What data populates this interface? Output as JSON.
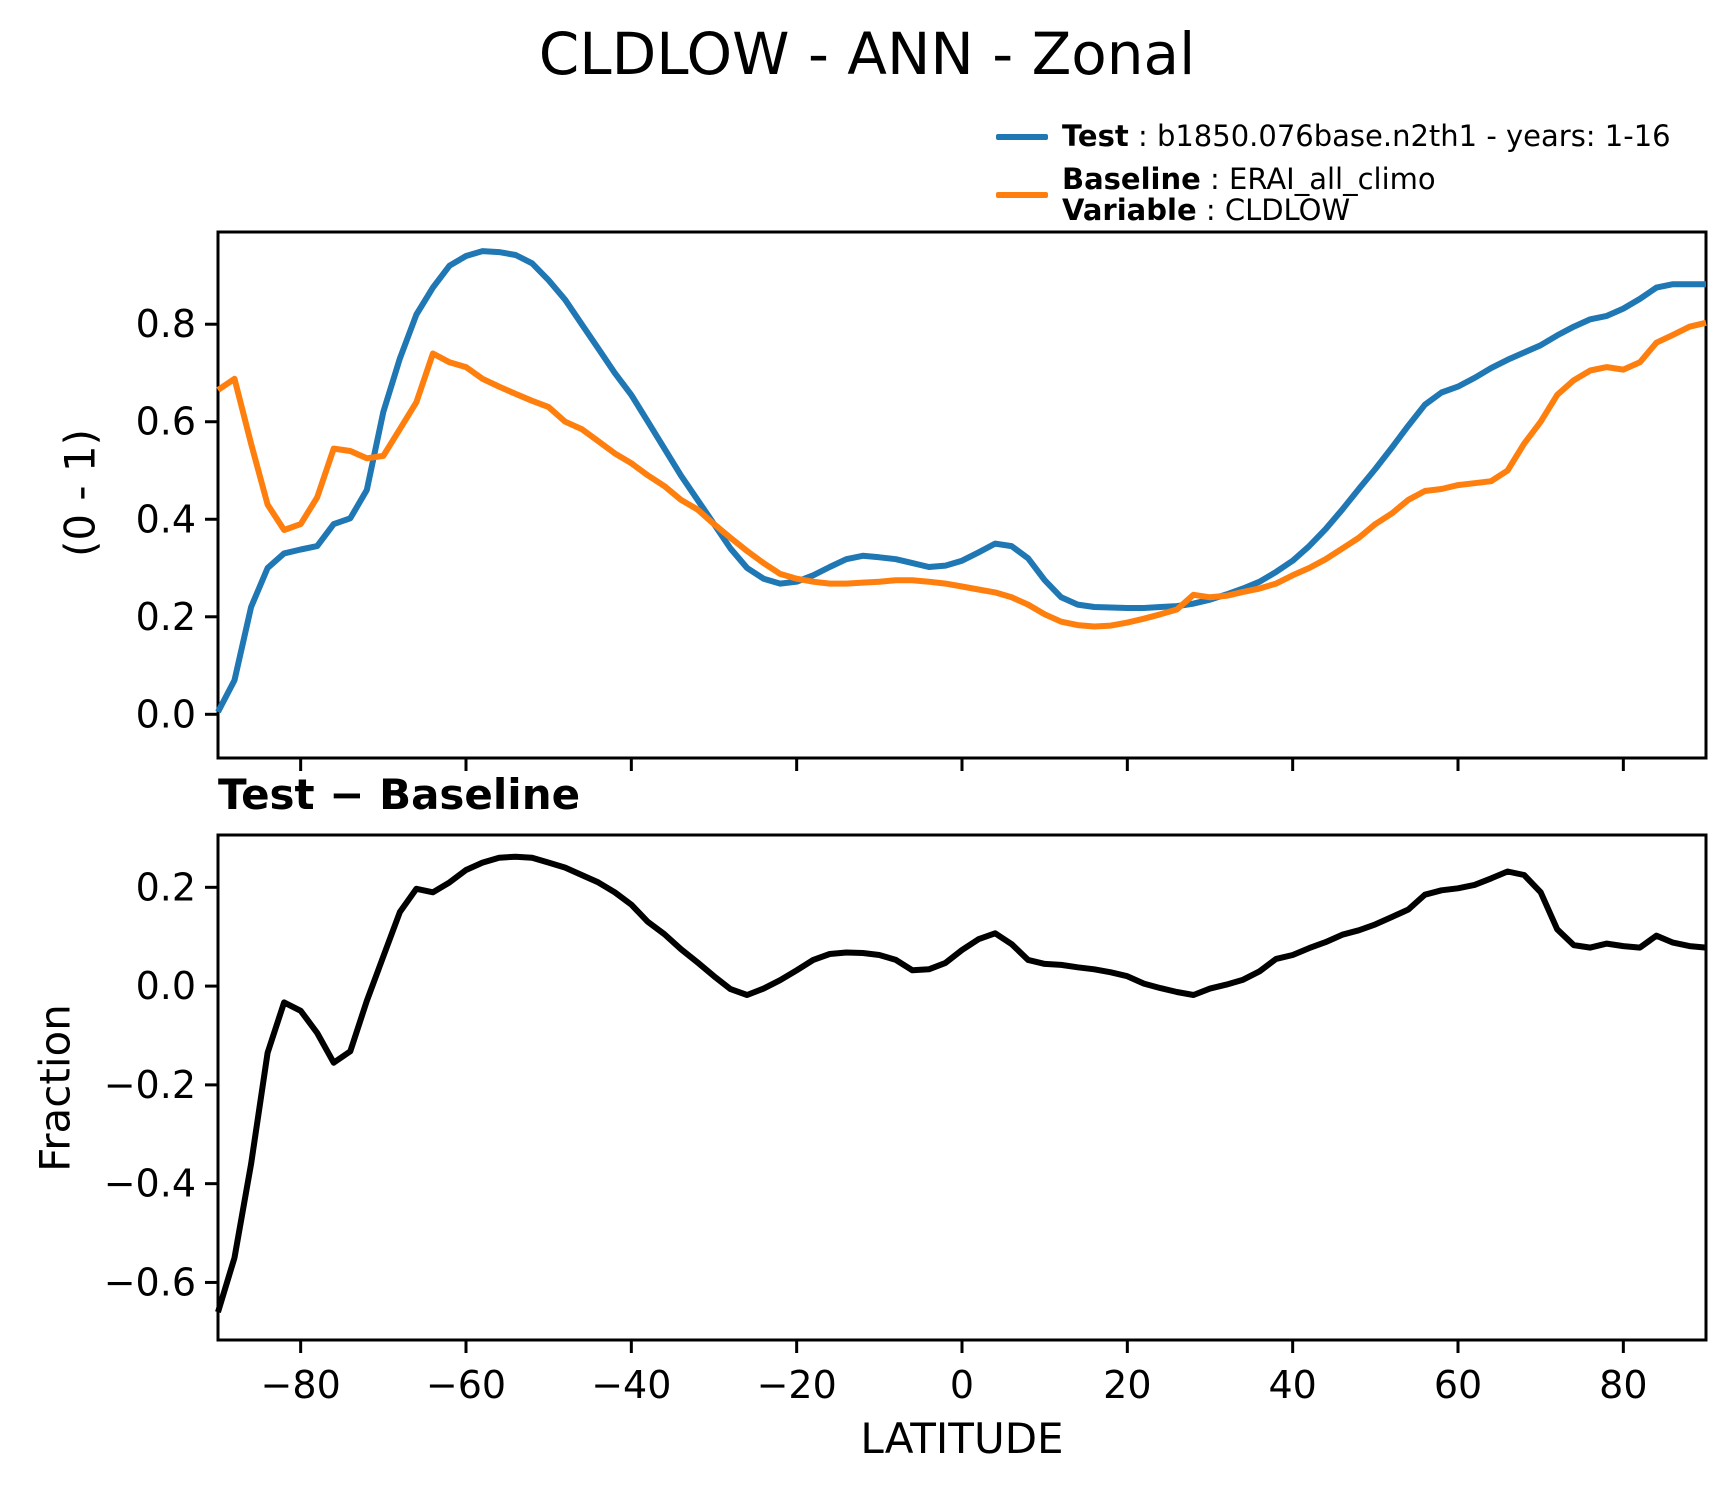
{
  "title": "CLDLOW - ANN - Zonal",
  "subtitle": "Test − Baseline",
  "colors": {
    "test": "#1f77b4",
    "baseline": "#ff7f0e",
    "difference": "#000000"
  },
  "legend": {
    "test": {
      "label_bold": "Test",
      "label_rest": " : b1850.076base.n2th1 - years: 1-16",
      "color": "#1f77b4"
    },
    "baseline": {
      "line1_bold": "Baseline",
      "line1_rest": " : ERAI_all_climo",
      "line2_bold": "Variable",
      "line2_rest": " : CLDLOW",
      "color": "#ff7f0e"
    }
  },
  "chart_data": [
    {
      "type": "line",
      "title": "",
      "xlabel": "",
      "ylabel": "(0 - 1)",
      "xlim": [
        -90,
        90
      ],
      "ylim": [
        -0.09,
        0.99
      ],
      "grid": false,
      "legend_position": "upper right, above axes",
      "xticks": [
        -80,
        -60,
        -40,
        -20,
        0,
        20,
        40,
        60,
        80
      ],
      "xtick_labels": [
        "−80",
        "−60",
        "−40",
        "−20",
        "0",
        "20",
        "40",
        "60",
        "80"
      ],
      "yticks": [
        0.0,
        0.2,
        0.4,
        0.6,
        0.8
      ],
      "ytick_labels": [
        "0.0",
        "0.2",
        "0.4",
        "0.6",
        "0.8"
      ],
      "x": [
        -90,
        -88,
        -86,
        -84,
        -82,
        -80,
        -78,
        -76,
        -74,
        -72,
        -70,
        -68,
        -66,
        -64,
        -62,
        -60,
        -58,
        -56,
        -54,
        -52,
        -50,
        -48,
        -46,
        -44,
        -42,
        -40,
        -38,
        -36,
        -34,
        -32,
        -30,
        -28,
        -26,
        -24,
        -22,
        -20,
        -18,
        -16,
        -14,
        -12,
        -10,
        -8,
        -6,
        -4,
        -2,
        0,
        2,
        4,
        6,
        8,
        10,
        12,
        14,
        16,
        18,
        20,
        22,
        24,
        26,
        28,
        30,
        32,
        34,
        36,
        38,
        40,
        42,
        44,
        46,
        48,
        50,
        52,
        54,
        56,
        58,
        60,
        62,
        64,
        66,
        68,
        70,
        72,
        74,
        76,
        78,
        80,
        82,
        84,
        86,
        88,
        90
      ],
      "series": [
        {
          "name": "Test: b1850.076base.n2th1 - years: 1-16",
          "color": "#1f77b4",
          "values": [
            0.005,
            0.07,
            0.22,
            0.3,
            0.33,
            0.338,
            0.345,
            0.39,
            0.402,
            0.46,
            0.62,
            0.73,
            0.82,
            0.875,
            0.92,
            0.94,
            0.95,
            0.948,
            0.942,
            0.925,
            0.89,
            0.85,
            0.8,
            0.75,
            0.7,
            0.655,
            0.6,
            0.545,
            0.49,
            0.44,
            0.39,
            0.34,
            0.3,
            0.278,
            0.268,
            0.272,
            0.285,
            0.302,
            0.318,
            0.325,
            0.322,
            0.318,
            0.31,
            0.302,
            0.305,
            0.315,
            0.332,
            0.35,
            0.345,
            0.32,
            0.275,
            0.24,
            0.225,
            0.22,
            0.219,
            0.218,
            0.218,
            0.22,
            0.222,
            0.227,
            0.235,
            0.246,
            0.258,
            0.272,
            0.292,
            0.315,
            0.345,
            0.38,
            0.42,
            0.462,
            0.503,
            0.547,
            0.592,
            0.635,
            0.66,
            0.672,
            0.69,
            0.71,
            0.727,
            0.742,
            0.757,
            0.777,
            0.795,
            0.81,
            0.817,
            0.832,
            0.852,
            0.875,
            0.882,
            0.882,
            0.882
          ]
        },
        {
          "name": "Baseline: ERAI_all_climo",
          "color": "#ff7f0e",
          "values": [
            0.665,
            0.688,
            0.555,
            0.43,
            0.378,
            0.39,
            0.445,
            0.545,
            0.54,
            0.525,
            0.53,
            0.585,
            0.64,
            0.74,
            0.722,
            0.712,
            0.688,
            0.672,
            0.657,
            0.643,
            0.63,
            0.6,
            0.585,
            0.56,
            0.535,
            0.515,
            0.49,
            0.468,
            0.44,
            0.42,
            0.39,
            0.362,
            0.335,
            0.31,
            0.288,
            0.278,
            0.272,
            0.268,
            0.268,
            0.27,
            0.272,
            0.275,
            0.275,
            0.272,
            0.268,
            0.262,
            0.256,
            0.25,
            0.24,
            0.225,
            0.205,
            0.19,
            0.183,
            0.18,
            0.182,
            0.188,
            0.196,
            0.205,
            0.215,
            0.245,
            0.24,
            0.243,
            0.251,
            0.258,
            0.268,
            0.285,
            0.3,
            0.318,
            0.34,
            0.362,
            0.39,
            0.412,
            0.44,
            0.458,
            0.462,
            0.47,
            0.474,
            0.478,
            0.5,
            0.555,
            0.6,
            0.655,
            0.685,
            0.705,
            0.712,
            0.707,
            0.722,
            0.762,
            0.778,
            0.795,
            0.803
          ]
        }
      ]
    },
    {
      "type": "line",
      "title": "Test − Baseline",
      "xlabel": "LATITUDE",
      "ylabel": "Fraction",
      "xlim": [
        -90,
        90
      ],
      "ylim": [
        -0.72,
        0.31
      ],
      "grid": false,
      "xticks": [
        -80,
        -60,
        -40,
        -20,
        0,
        20,
        40,
        60,
        80
      ],
      "xtick_labels": [
        "−80",
        "−60",
        "−40",
        "−20",
        "0",
        "20",
        "40",
        "60",
        "80"
      ],
      "yticks": [
        0.2,
        0.0,
        -0.2,
        -0.4,
        -0.6
      ],
      "ytick_labels": [
        "0.2",
        "0.0",
        "−0.2",
        "−0.4",
        "−0.6"
      ],
      "x": [
        -90,
        -88,
        -86,
        -84,
        -82,
        -80,
        -78,
        -76,
        -74,
        -72,
        -70,
        -68,
        -66,
        -64,
        -62,
        -60,
        -58,
        -56,
        -54,
        -52,
        -50,
        -48,
        -46,
        -44,
        -42,
        -40,
        -38,
        -36,
        -34,
        -32,
        -30,
        -28,
        -26,
        -24,
        -22,
        -20,
        -18,
        -16,
        -14,
        -12,
        -10,
        -8,
        -6,
        -4,
        -2,
        0,
        2,
        4,
        6,
        8,
        10,
        12,
        14,
        16,
        18,
        20,
        22,
        24,
        26,
        28,
        30,
        32,
        34,
        36,
        38,
        40,
        42,
        44,
        46,
        48,
        50,
        52,
        54,
        56,
        58,
        60,
        62,
        64,
        66,
        68,
        70,
        72,
        74,
        76,
        78,
        80,
        82,
        84,
        86,
        88,
        90
      ],
      "series": [
        {
          "name": "Test − Baseline",
          "color": "#000000",
          "values": [
            -0.66,
            -0.55,
            -0.36,
            -0.135,
            -0.033,
            -0.05,
            -0.095,
            -0.155,
            -0.132,
            -0.03,
            0.06,
            0.15,
            0.197,
            0.19,
            0.21,
            0.235,
            0.25,
            0.26,
            0.262,
            0.26,
            0.25,
            0.24,
            0.225,
            0.21,
            0.19,
            0.165,
            0.13,
            0.105,
            0.075,
            0.048,
            0.02,
            -0.006,
            -0.018,
            -0.005,
            0.012,
            0.032,
            0.053,
            0.065,
            0.068,
            0.067,
            0.063,
            0.053,
            0.032,
            0.034,
            0.047,
            0.073,
            0.095,
            0.107,
            0.085,
            0.053,
            0.045,
            0.043,
            0.038,
            0.034,
            0.028,
            0.02,
            0.005,
            -0.004,
            -0.012,
            -0.018,
            -0.005,
            0.003,
            0.013,
            0.03,
            0.055,
            0.063,
            0.077,
            0.089,
            0.104,
            0.113,
            0.125,
            0.14,
            0.155,
            0.185,
            0.194,
            0.198,
            0.205,
            0.218,
            0.232,
            0.225,
            0.19,
            0.115,
            0.083,
            0.078,
            0.086,
            0.081,
            0.078,
            0.102,
            0.088,
            0.081,
            0.078
          ]
        }
      ]
    }
  ]
}
